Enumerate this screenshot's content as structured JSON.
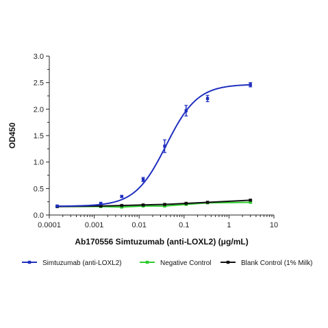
{
  "chart_data": {
    "type": "line",
    "xlabel": "Ab170556 Simtuzumab (anti-LOXL2) (μg/mL)",
    "ylabel": "OD450",
    "xscale": "log",
    "xlim": [
      0.0001,
      10
    ],
    "ylim": [
      0,
      3.0
    ],
    "x_ticks": [
      0.0001,
      0.001,
      0.01,
      0.1,
      1,
      10
    ],
    "x_tick_labels": [
      "0.0001",
      "0.001",
      "0.01",
      "0.1",
      "1",
      "10"
    ],
    "y_ticks": [
      0,
      0.5,
      1.0,
      1.5,
      2.0,
      2.5,
      3.0
    ],
    "y_tick_labels": [
      "0.0",
      "0.5",
      "1.0",
      "1.5",
      "2.0",
      "2.5",
      "3.0"
    ],
    "grid": false,
    "legend_position": "bottom",
    "series": [
      {
        "name": "Simtuzumab (anti-LOXL2)",
        "color": "#1f2fbf",
        "marker": "square",
        "curve": "four-parameter-logistic",
        "x": [
          0.00015,
          0.0014,
          0.0041,
          0.0123,
          0.037,
          0.111,
          0.333,
          3.0
        ],
        "y": [
          0.17,
          0.22,
          0.35,
          0.67,
          1.3,
          1.97,
          2.2,
          2.46
        ],
        "error": [
          0.01,
          0.01,
          0.02,
          0.04,
          0.12,
          0.1,
          0.06,
          0.04
        ]
      },
      {
        "name": "Negative Control",
        "color": "#2ecc2e",
        "marker": "square",
        "curve": "line",
        "x": [
          0.00015,
          0.0014,
          0.0041,
          0.0123,
          0.037,
          0.111,
          0.333,
          3.0
        ],
        "y": [
          0.16,
          0.16,
          0.15,
          0.17,
          0.17,
          0.2,
          0.23,
          0.24
        ],
        "error": [
          0.01,
          0.01,
          0.01,
          0.01,
          0.01,
          0.01,
          0.01,
          0.01
        ]
      },
      {
        "name": "Blank Control (1% Milk)",
        "color": "#111111",
        "marker": "square",
        "curve": "line",
        "x": [
          0.00015,
          0.0014,
          0.0041,
          0.0123,
          0.037,
          0.111,
          0.333,
          3.0
        ],
        "y": [
          0.16,
          0.17,
          0.18,
          0.19,
          0.2,
          0.22,
          0.24,
          0.28
        ],
        "error": [
          0.01,
          0.01,
          0.01,
          0.01,
          0.01,
          0.01,
          0.01,
          0.01
        ]
      }
    ]
  }
}
